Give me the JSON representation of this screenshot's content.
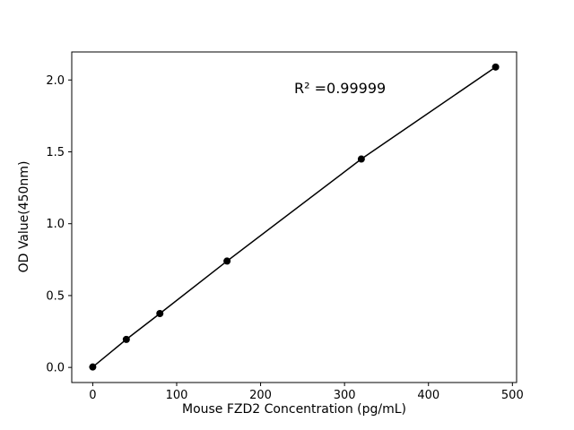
{
  "chart_data": {
    "type": "line",
    "title": "",
    "xlabel": "Mouse FZD2 Concentration (pg/mL)",
    "ylabel": "OD Value(450nm)",
    "annotation": {
      "text": "R² =0.99999"
    },
    "x": [
      0,
      40,
      80,
      160,
      320,
      480
    ],
    "y": [
      0.003,
      0.195,
      0.375,
      0.74,
      1.45,
      2.09
    ],
    "xlim": [
      -25,
      505
    ],
    "ylim": [
      -0.105,
      2.195
    ],
    "xticks": [
      0,
      100,
      200,
      300,
      400,
      500
    ],
    "xtick_labels": [
      "0",
      "100",
      "200",
      "300",
      "400",
      "500"
    ],
    "yticks": [
      0,
      0.5,
      1.0,
      1.5,
      2.0
    ],
    "ytick_labels": [
      "0.0",
      "0.5",
      "1.0",
      "1.5",
      "2.0"
    ],
    "line_color": "#000000",
    "marker_color": "#000000",
    "marker_shape": "circle",
    "background": "#ffffff",
    "grid": false,
    "legend": "none"
  }
}
